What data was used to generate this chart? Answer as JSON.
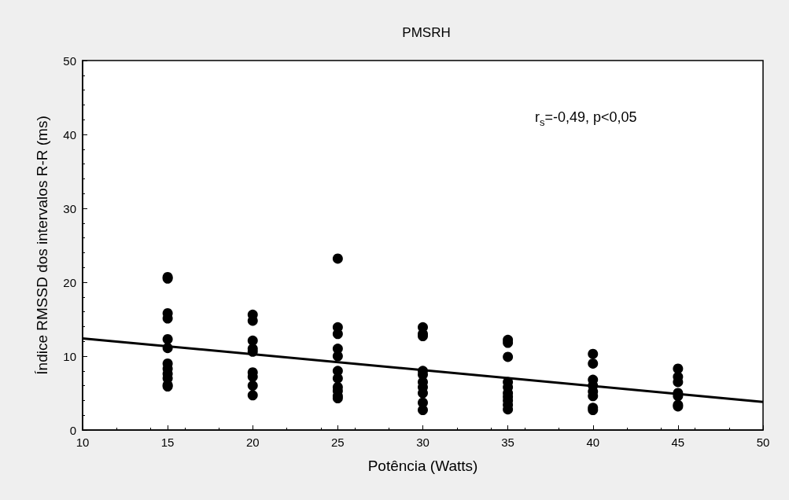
{
  "chart_data": {
    "type": "scatter",
    "title": "PMSRH",
    "xlabel": "Potência (Watts)",
    "ylabel": "Índice RMSSD dos intervalos R-R (ms)",
    "annotations": [
      "r$_{s}$=-0,49, p<0,05"
    ],
    "xlim": [
      10,
      50
    ],
    "xticks": [
      10,
      15,
      20,
      25,
      30,
      35,
      40,
      45,
      50
    ],
    "ylim": [
      0,
      50
    ],
    "yticks": [
      0,
      10,
      20,
      30,
      40,
      50
    ],
    "grid": false,
    "marker": "circle",
    "series": [
      {
        "color": "#000000",
        "x": [
          15,
          15,
          15,
          15,
          15,
          15,
          15,
          15,
          15,
          15,
          15,
          15,
          20,
          20,
          20,
          20,
          20,
          20,
          20,
          20,
          20,
          25,
          25,
          25,
          25,
          25,
          25,
          25,
          25,
          25,
          25,
          25,
          30,
          30,
          30,
          30,
          30,
          30,
          30,
          30,
          30,
          30,
          35,
          35,
          35,
          35,
          35,
          35,
          35,
          35,
          35,
          35,
          40,
          40,
          40,
          40,
          40,
          40,
          40,
          40,
          45,
          45,
          45,
          45,
          45,
          45,
          45
        ],
        "values": [
          20.7,
          20.5,
          15.8,
          15.1,
          12.3,
          11.1,
          9,
          8.3,
          7.6,
          7,
          6.1,
          5.9,
          15.6,
          14.8,
          12.1,
          11,
          10.6,
          7.8,
          7.2,
          6,
          4.7,
          23.2,
          13.9,
          13,
          11,
          10,
          8,
          7,
          5.8,
          5.3,
          4.6,
          4.3,
          13.9,
          13,
          12.7,
          8,
          7.5,
          6.5,
          5.8,
          5,
          3.7,
          2.7,
          12.2,
          11.8,
          9.9,
          6.5,
          5.8,
          5,
          4.5,
          4,
          3.4,
          2.8,
          10.3,
          9,
          6.8,
          6,
          5.2,
          4.6,
          3,
          2.7,
          8.3,
          7.2,
          6.5,
          5,
          4.6,
          3.4,
          3.2
        ]
      },
      {
        "type": "line",
        "color": "#000000",
        "x": [
          10,
          50
        ],
        "values": [
          12.4,
          3.8
        ],
        "marker": "none",
        "line_style": "solid"
      }
    ]
  }
}
